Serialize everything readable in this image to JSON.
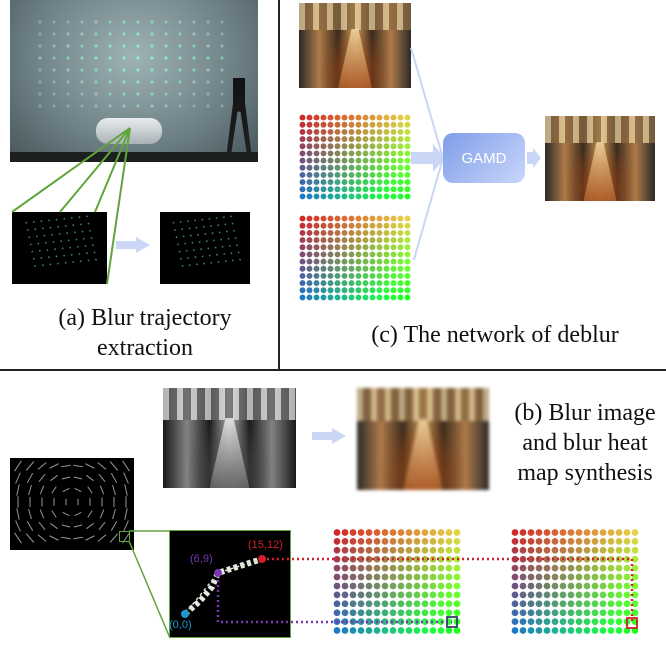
{
  "panel_a": {
    "caption_line1": "(a) Blur trajectory",
    "caption_line2": "extraction"
  },
  "panel_b": {
    "caption_line1": "(b) Blur image",
    "caption_line2": "and blur heat",
    "caption_line3": "map synthesis",
    "point_start": "(0,0)",
    "point_mid": "(6,9)",
    "point_end": "(15,12)"
  },
  "panel_c": {
    "caption": "(c) The network of deblur",
    "block_label": "GAMD"
  },
  "colors": {
    "green_callout": "#62a43c",
    "red_dotted": "#d0202a",
    "purple_dotted": "#7a35b0",
    "arrow": "#c9d6f5",
    "divider": "#222222"
  }
}
